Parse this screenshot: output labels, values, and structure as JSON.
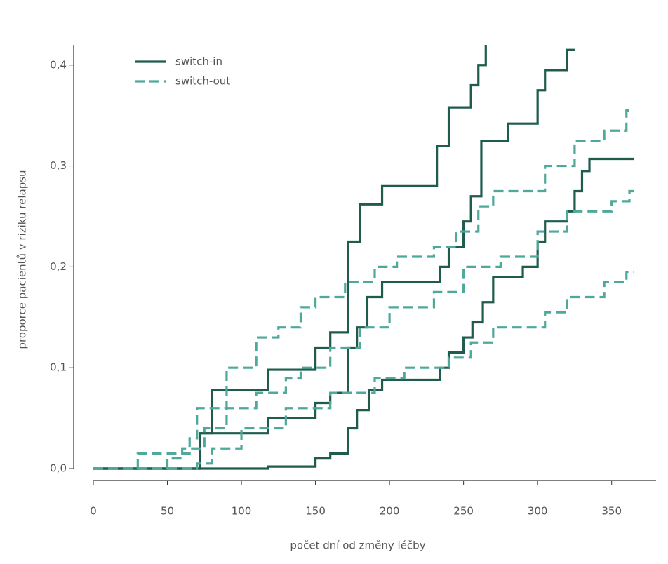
{
  "chart_data": {
    "type": "step",
    "x_label": "počet dní od změny léčby",
    "y_label": "proporce pacientů v riziku relapsu",
    "xlim": [
      0,
      380
    ],
    "ylim": [
      0,
      0.42
    ],
    "xticks": [
      0,
      50,
      100,
      150,
      200,
      250,
      300,
      350
    ],
    "yticks": [
      {
        "value": 0,
        "label": "0,0"
      },
      {
        "value": 0.1,
        "label": "0,1"
      },
      {
        "value": 0.2,
        "label": "0,2"
      },
      {
        "value": 0.3,
        "label": "0,3"
      },
      {
        "value": 0.4,
        "label": "0,4"
      }
    ],
    "series": [
      {
        "name": "switch-in",
        "color": "#1f5c4e",
        "dashed": false,
        "curves": [
          {
            "x": [
              0,
              72,
              80,
              118,
              150,
              160,
              172,
              180,
              195,
              232,
              240,
              255,
              260,
              265
            ],
            "values": [
              0,
              0.035,
              0.078,
              0.098,
              0.12,
              0.135,
              0.225,
              0.262,
              0.28,
              0.32,
              0.358,
              0.38,
              0.4,
              0.42
            ]
          },
          {
            "x": [
              0,
              72,
              118,
              150,
              160,
              172,
              178,
              185,
              195,
              234,
              240,
              250,
              255,
              262,
              280,
              300,
              305,
              320,
              325
            ],
            "values": [
              0,
              0.035,
              0.05,
              0.065,
              0.075,
              0.12,
              0.14,
              0.17,
              0.185,
              0.2,
              0.22,
              0.245,
              0.27,
              0.325,
              0.342,
              0.375,
              0.395,
              0.415,
              0.415
            ]
          },
          {
            "x": [
              0,
              118,
              150,
              160,
              172,
              178,
              186,
              195,
              234,
              240,
              250,
              256,
              263,
              270,
              290,
              300,
              305,
              320,
              325,
              330,
              335,
              365
            ],
            "values": [
              0,
              0.002,
              0.01,
              0.015,
              0.04,
              0.058,
              0.078,
              0.088,
              0.1,
              0.115,
              0.13,
              0.145,
              0.165,
              0.19,
              0.2,
              0.225,
              0.245,
              0.255,
              0.275,
              0.295,
              0.307,
              0.307
            ]
          }
        ]
      },
      {
        "name": "switch-out",
        "color": "#4fa99b",
        "dashed": true,
        "curves": [
          {
            "x": [
              0,
              30,
              65,
              70,
              90,
              110,
              125,
              140,
              150,
              170,
              190,
              205,
              230,
              245,
              260,
              270,
              305,
              325,
              345,
              360,
              365
            ],
            "values": [
              0,
              0.015,
              0.03,
              0.06,
              0.1,
              0.13,
              0.14,
              0.16,
              0.17,
              0.185,
              0.2,
              0.21,
              0.22,
              0.235,
              0.26,
              0.275,
              0.3,
              0.325,
              0.335,
              0.355,
              0.355
            ]
          },
          {
            "x": [
              0,
              50,
              60,
              75,
              90,
              110,
              130,
              140,
              160,
              180,
              200,
              230,
              250,
              275,
              300,
              320,
              350,
              362,
              365
            ],
            "values": [
              0,
              0.01,
              0.02,
              0.04,
              0.06,
              0.075,
              0.09,
              0.1,
              0.12,
              0.14,
              0.16,
              0.175,
              0.2,
              0.21,
              0.235,
              0.255,
              0.265,
              0.275,
              0.275
            ]
          },
          {
            "x": [
              0,
              70,
              80,
              100,
              130,
              160,
              190,
              210,
              240,
              255,
              270,
              305,
              320,
              345,
              360,
              365
            ],
            "values": [
              0,
              0.005,
              0.02,
              0.04,
              0.06,
              0.075,
              0.09,
              0.1,
              0.11,
              0.125,
              0.14,
              0.155,
              0.17,
              0.185,
              0.195,
              0.195
            ]
          }
        ]
      }
    ]
  }
}
